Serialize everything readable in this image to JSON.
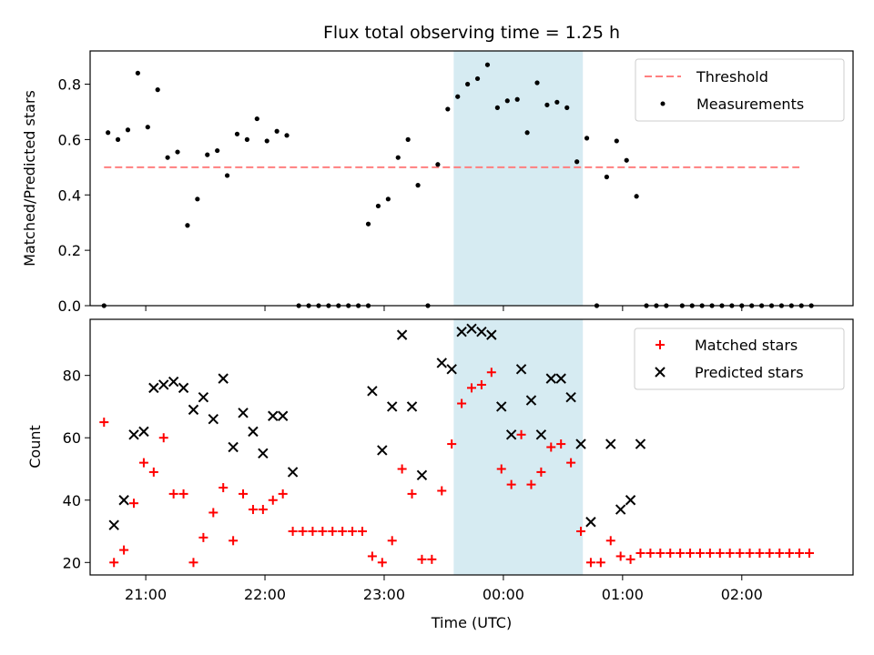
{
  "chart_data": [
    {
      "type": "scatter",
      "title": "Flux total observing time = 1.25 h",
      "xlabel": "",
      "ylabel": "Matched/Predicted stars",
      "xlim": [
        "20:32",
        "02:56"
      ],
      "ylim": [
        0,
        0.92
      ],
      "grid": false,
      "legend_position": "top-right",
      "highlight_span": [
        "23:35",
        "00:40"
      ],
      "x_ticks": [
        "21:00",
        "22:00",
        "23:00",
        "00:00",
        "01:00",
        "02:00"
      ],
      "y_ticks": [
        "0.0",
        "0.2",
        "0.4",
        "0.6",
        "0.8"
      ],
      "threshold": {
        "name": "Threshold",
        "value": 0.5,
        "x_range": [
          "20:39",
          "02:29"
        ],
        "color": "#ff7f7f"
      },
      "series": [
        {
          "name": "Measurements",
          "color": "#000000",
          "marker": "dot",
          "points": [
            [
              "20:39",
              0.0
            ],
            [
              "20:41",
              0.625
            ],
            [
              "20:46",
              0.6
            ],
            [
              "20:51",
              0.635
            ],
            [
              "20:56",
              0.84
            ],
            [
              "21:01",
              0.645
            ],
            [
              "21:06",
              0.78
            ],
            [
              "21:11",
              0.535
            ],
            [
              "21:16",
              0.555
            ],
            [
              "21:21",
              0.29
            ],
            [
              "21:26",
              0.385
            ],
            [
              "21:31",
              0.545
            ],
            [
              "21:36",
              0.56
            ],
            [
              "21:41",
              0.47
            ],
            [
              "21:46",
              0.62
            ],
            [
              "21:51",
              0.6
            ],
            [
              "21:56",
              0.675
            ],
            [
              "22:01",
              0.595
            ],
            [
              "22:06",
              0.63
            ],
            [
              "22:11",
              0.615
            ],
            [
              "22:17",
              0.0
            ],
            [
              "22:22",
              0.0
            ],
            [
              "22:27",
              0.0
            ],
            [
              "22:32",
              0.0
            ],
            [
              "22:37",
              0.0
            ],
            [
              "22:42",
              0.0
            ],
            [
              "22:47",
              0.0
            ],
            [
              "22:52",
              0.0
            ],
            [
              "22:52",
              0.295
            ],
            [
              "22:57",
              0.36
            ],
            [
              "23:02",
              0.385
            ],
            [
              "23:07",
              0.535
            ],
            [
              "23:12",
              0.6
            ],
            [
              "23:17",
              0.435
            ],
            [
              "23:22",
              0.0
            ],
            [
              "23:27",
              0.51
            ],
            [
              "23:32",
              0.71
            ],
            [
              "23:37",
              0.755
            ],
            [
              "23:42",
              0.8
            ],
            [
              "23:47",
              0.82
            ],
            [
              "23:52",
              0.87
            ],
            [
              "23:57",
              0.715
            ],
            [
              "00:02",
              0.74
            ],
            [
              "00:07",
              0.745
            ],
            [
              "00:12",
              0.625
            ],
            [
              "00:17",
              0.805
            ],
            [
              "00:22",
              0.725
            ],
            [
              "00:27",
              0.735
            ],
            [
              "00:32",
              0.715
            ],
            [
              "00:37",
              0.52
            ],
            [
              "00:42",
              0.605
            ],
            [
              "00:47",
              0.0
            ],
            [
              "00:52",
              0.465
            ],
            [
              "00:57",
              0.595
            ],
            [
              "01:02",
              0.525
            ],
            [
              "01:07",
              0.395
            ],
            [
              "01:12",
              0.0
            ],
            [
              "01:17",
              0.0
            ],
            [
              "01:22",
              0.0
            ],
            [
              "01:30",
              0.0
            ],
            [
              "01:35",
              0.0
            ],
            [
              "01:40",
              0.0
            ],
            [
              "01:45",
              0.0
            ],
            [
              "01:50",
              0.0
            ],
            [
              "01:55",
              0.0
            ],
            [
              "02:00",
              0.0
            ],
            [
              "02:05",
              0.0
            ],
            [
              "02:10",
              0.0
            ],
            [
              "02:15",
              0.0
            ],
            [
              "02:20",
              0.0
            ],
            [
              "02:25",
              0.0
            ],
            [
              "02:30",
              0.0
            ],
            [
              "02:35",
              0.0
            ]
          ]
        }
      ]
    },
    {
      "type": "scatter",
      "title": "",
      "xlabel": "Time (UTC)",
      "ylabel": "Count",
      "xlim": [
        "20:32",
        "02:56"
      ],
      "ylim": [
        16,
        98
      ],
      "grid": false,
      "legend_position": "top-right",
      "highlight_span": [
        "23:35",
        "00:40"
      ],
      "x_ticks": [
        "21:00",
        "22:00",
        "23:00",
        "00:00",
        "01:00",
        "02:00"
      ],
      "y_ticks": [
        "20",
        "40",
        "60",
        "80"
      ],
      "series": [
        {
          "name": "Matched stars",
          "color": "#ff0000",
          "marker": "plus",
          "points": [
            [
              "20:39",
              65
            ],
            [
              "20:44",
              20
            ],
            [
              "20:49",
              24
            ],
            [
              "20:54",
              39
            ],
            [
              "20:59",
              52
            ],
            [
              "21:04",
              49
            ],
            [
              "21:09",
              60
            ],
            [
              "21:14",
              42
            ],
            [
              "21:19",
              42
            ],
            [
              "21:24",
              20
            ],
            [
              "21:29",
              28
            ],
            [
              "21:34",
              36
            ],
            [
              "21:39",
              44
            ],
            [
              "21:44",
              27
            ],
            [
              "21:49",
              42
            ],
            [
              "21:54",
              37
            ],
            [
              "21:59",
              37
            ],
            [
              "22:04",
              40
            ],
            [
              "22:09",
              42
            ],
            [
              "22:14",
              30
            ],
            [
              "22:19",
              30
            ],
            [
              "22:24",
              30
            ],
            [
              "22:29",
              30
            ],
            [
              "22:34",
              30
            ],
            [
              "22:39",
              30
            ],
            [
              "22:44",
              30
            ],
            [
              "22:49",
              30
            ],
            [
              "22:54",
              22
            ],
            [
              "22:59",
              20
            ],
            [
              "23:04",
              27
            ],
            [
              "23:09",
              50
            ],
            [
              "23:14",
              42
            ],
            [
              "23:19",
              21
            ],
            [
              "23:24",
              21
            ],
            [
              "23:29",
              43
            ],
            [
              "23:34",
              58
            ],
            [
              "23:39",
              71
            ],
            [
              "23:44",
              76
            ],
            [
              "23:49",
              77
            ],
            [
              "23:54",
              81
            ],
            [
              "23:59",
              50
            ],
            [
              "00:04",
              45
            ],
            [
              "00:09",
              61
            ],
            [
              "00:14",
              45
            ],
            [
              "00:19",
              49
            ],
            [
              "00:24",
              57
            ],
            [
              "00:29",
              58
            ],
            [
              "00:34",
              52
            ],
            [
              "00:39",
              30
            ],
            [
              "00:44",
              20
            ],
            [
              "00:49",
              20
            ],
            [
              "00:54",
              27
            ],
            [
              "00:59",
              22
            ],
            [
              "01:04",
              21
            ],
            [
              "01:09",
              23
            ],
            [
              "01:14",
              23
            ],
            [
              "01:19",
              23
            ],
            [
              "01:24",
              23
            ],
            [
              "01:29",
              23
            ],
            [
              "01:34",
              23
            ],
            [
              "01:39",
              23
            ],
            [
              "01:44",
              23
            ],
            [
              "01:49",
              23
            ],
            [
              "01:54",
              23
            ],
            [
              "01:59",
              23
            ],
            [
              "02:04",
              23
            ],
            [
              "02:09",
              23
            ],
            [
              "02:14",
              23
            ],
            [
              "02:19",
              23
            ],
            [
              "02:24",
              23
            ],
            [
              "02:29",
              23
            ],
            [
              "02:34",
              23
            ]
          ]
        },
        {
          "name": "Predicted stars",
          "color": "#000000",
          "marker": "x",
          "points": [
            [
              "20:44",
              32
            ],
            [
              "20:49",
              40
            ],
            [
              "20:54",
              61
            ],
            [
              "20:59",
              62
            ],
            [
              "21:04",
              76
            ],
            [
              "21:09",
              77
            ],
            [
              "21:14",
              78
            ],
            [
              "21:19",
              76
            ],
            [
              "21:24",
              69
            ],
            [
              "21:29",
              73
            ],
            [
              "21:34",
              66
            ],
            [
              "21:39",
              79
            ],
            [
              "21:44",
              57
            ],
            [
              "21:49",
              68
            ],
            [
              "21:54",
              62
            ],
            [
              "21:59",
              55
            ],
            [
              "22:04",
              67
            ],
            [
              "22:09",
              67
            ],
            [
              "22:14",
              49
            ],
            [
              "22:54",
              75
            ],
            [
              "22:59",
              56
            ],
            [
              "23:04",
              70
            ],
            [
              "23:09",
              93
            ],
            [
              "23:14",
              70
            ],
            [
              "23:19",
              48
            ],
            [
              "23:29",
              84
            ],
            [
              "23:34",
              82
            ],
            [
              "23:39",
              94
            ],
            [
              "23:44",
              95
            ],
            [
              "23:49",
              94
            ],
            [
              "23:54",
              93
            ],
            [
              "23:59",
              70
            ],
            [
              "00:04",
              61
            ],
            [
              "00:09",
              82
            ],
            [
              "00:14",
              72
            ],
            [
              "00:19",
              61
            ],
            [
              "00:24",
              79
            ],
            [
              "00:29",
              79
            ],
            [
              "00:34",
              73
            ],
            [
              "00:39",
              58
            ],
            [
              "00:44",
              33
            ],
            [
              "00:54",
              58
            ],
            [
              "00:59",
              37
            ],
            [
              "01:04",
              40
            ],
            [
              "01:09",
              58
            ]
          ]
        }
      ]
    }
  ]
}
